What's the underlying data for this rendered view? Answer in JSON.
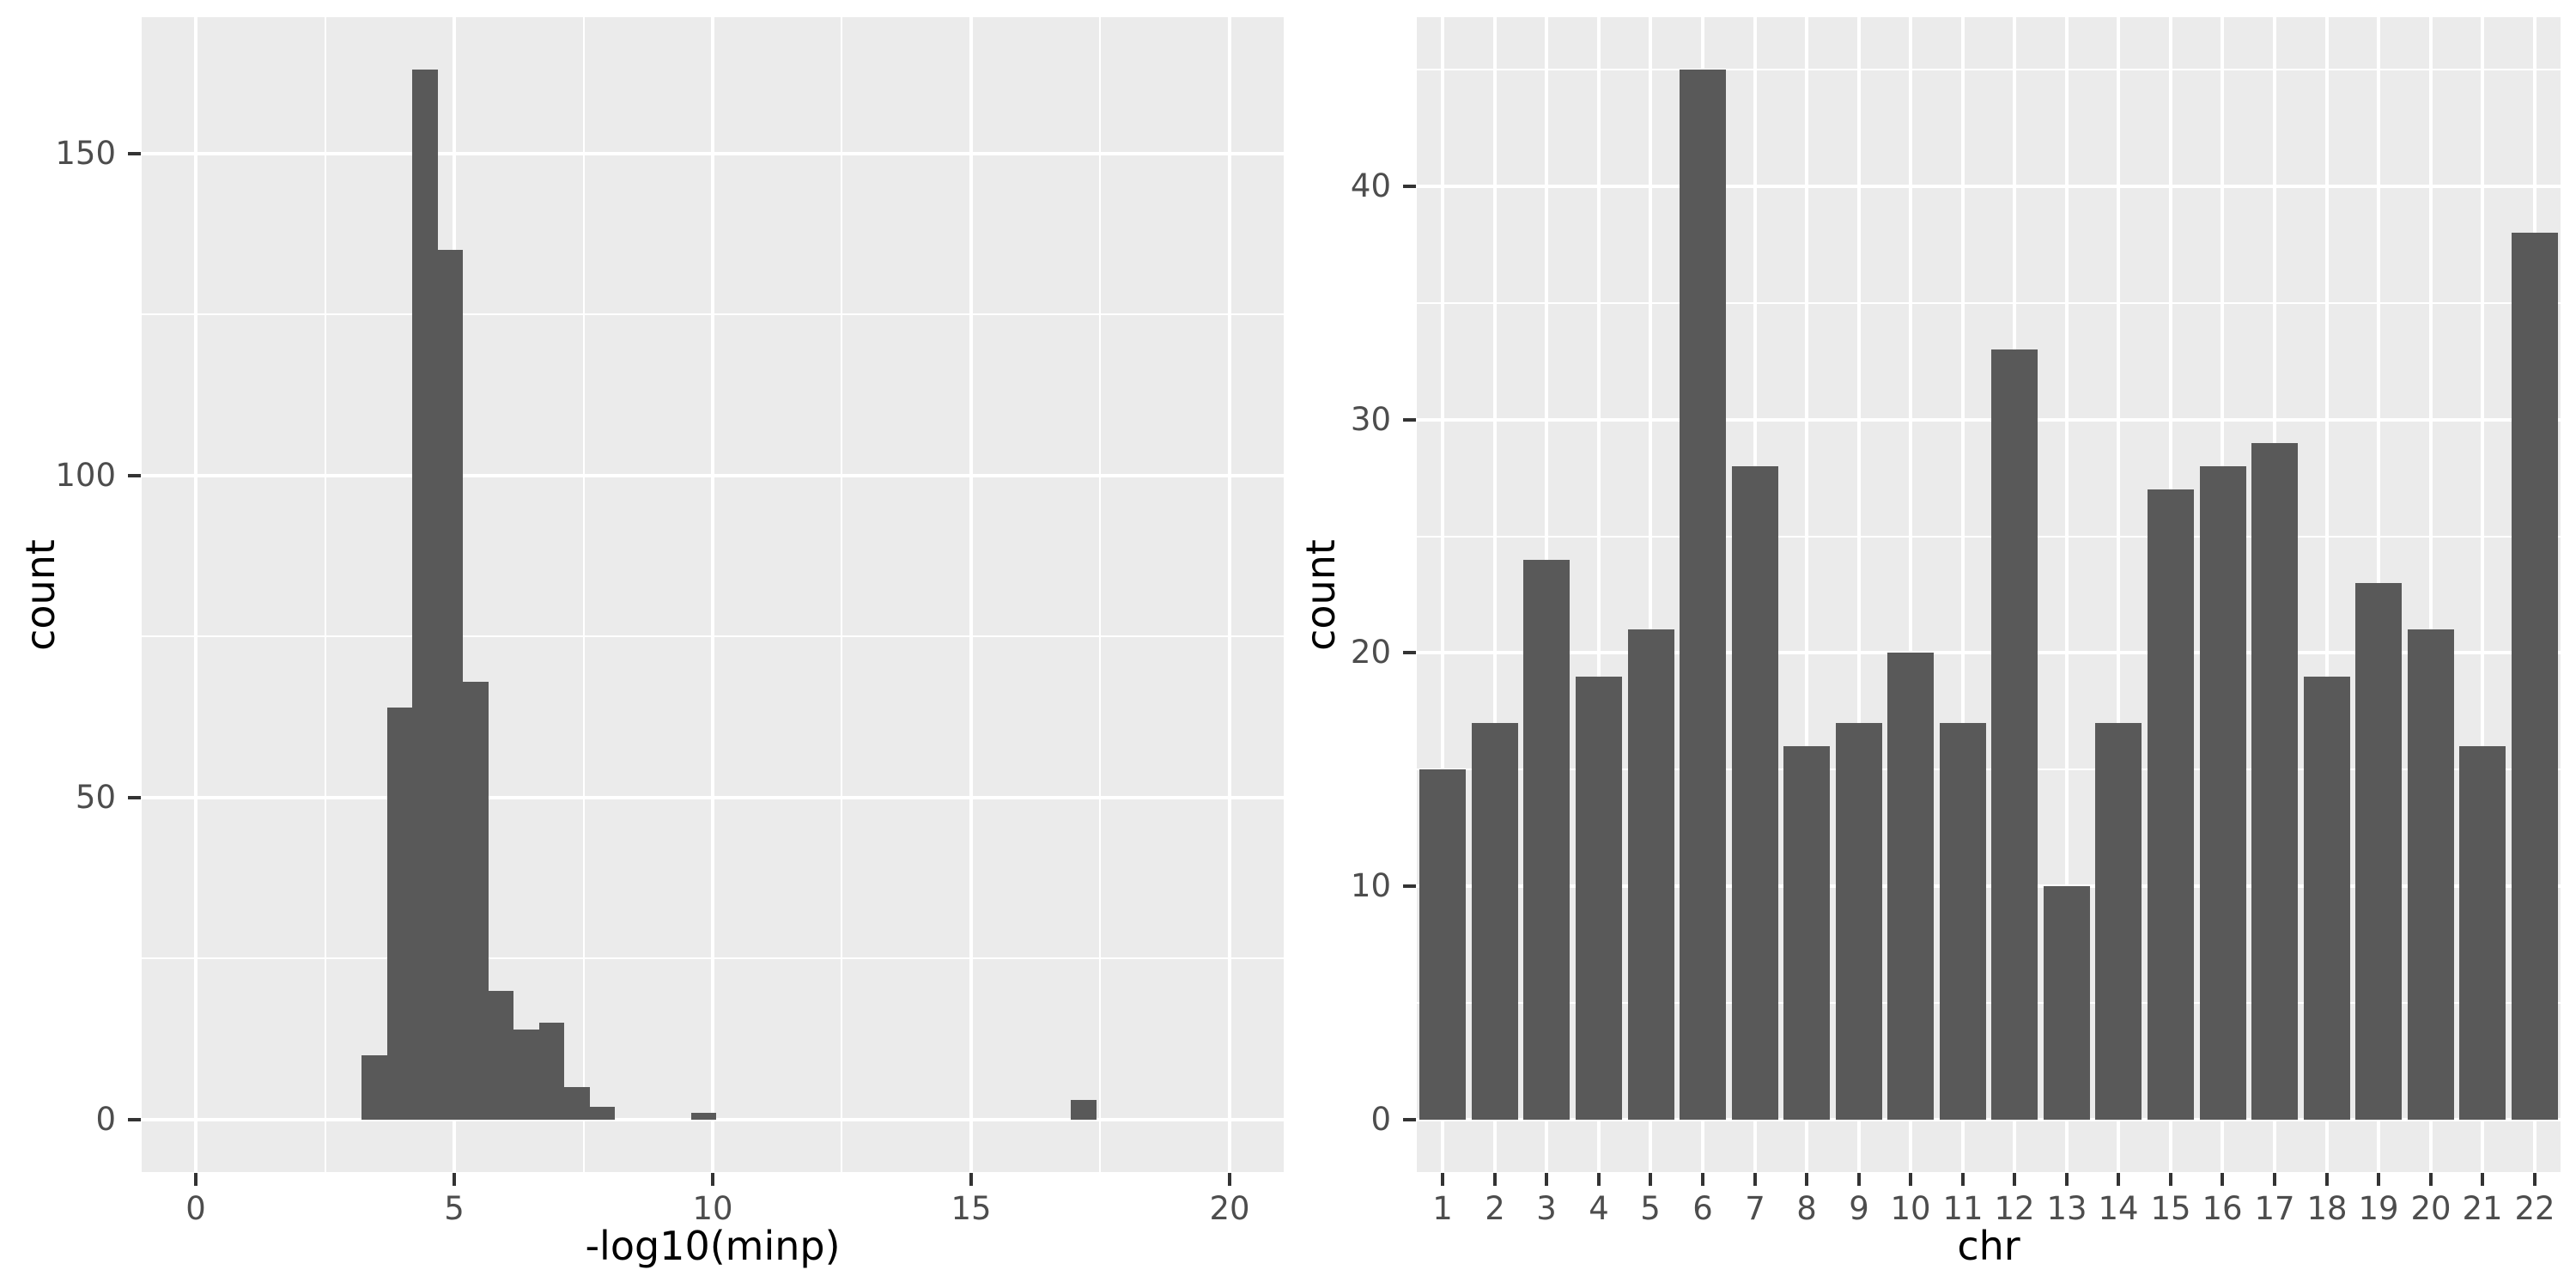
{
  "colors": {
    "background": "#FFFFFF",
    "panel_background": "#EBEBEB",
    "grid": "#FFFFFF",
    "bar_fill": "#595959",
    "tick_mark": "#333333",
    "tick_label": "#4D4D4D",
    "axis_title": "#000000"
  },
  "chart_data": [
    {
      "id": "minp-histogram",
      "type": "bar",
      "variant": "histogram",
      "title": "",
      "xlabel": "-log10(minp)",
      "ylabel": "count",
      "bin_start": 3.21,
      "bin_width": 0.49,
      "counts": [
        10,
        64,
        163,
        135,
        68,
        20,
        14,
        15,
        5,
        2,
        0,
        0,
        0,
        1,
        0,
        0,
        0,
        0,
        0,
        0,
        0,
        0,
        0,
        0,
        0,
        0,
        0,
        0,
        3,
        0
      ],
      "x_ticks": [
        0,
        5,
        10,
        15,
        20
      ],
      "x_minor_ticks": [
        2.5,
        7.5,
        12.5,
        17.5
      ],
      "y_ticks": [
        0,
        50,
        100,
        150
      ],
      "y_minor_ticks": [
        25,
        75,
        125
      ],
      "xlim": [
        -1.05,
        21.05
      ],
      "ylim": [
        -8.15,
        171.15
      ],
      "grid": true,
      "legend": "none"
    },
    {
      "id": "chr-bar-chart",
      "type": "bar",
      "variant": "categorical",
      "title": "",
      "xlabel": "chr",
      "ylabel": "count",
      "categories": [
        "1",
        "2",
        "3",
        "4",
        "5",
        "6",
        "7",
        "8",
        "9",
        "10",
        "11",
        "12",
        "13",
        "14",
        "15",
        "16",
        "17",
        "18",
        "19",
        "20",
        "21",
        "22"
      ],
      "values": [
        15,
        17,
        24,
        19,
        21,
        45,
        28,
        16,
        17,
        20,
        17,
        33,
        10,
        17,
        27,
        28,
        29,
        19,
        23,
        21,
        16,
        38
      ],
      "y_ticks": [
        0,
        10,
        20,
        30,
        40
      ],
      "y_minor_ticks": [
        5,
        15,
        25,
        35,
        45
      ],
      "ylim": [
        -2.25,
        47.25
      ],
      "bar_rel_width": 0.89,
      "grid": true,
      "legend": "none"
    }
  ]
}
